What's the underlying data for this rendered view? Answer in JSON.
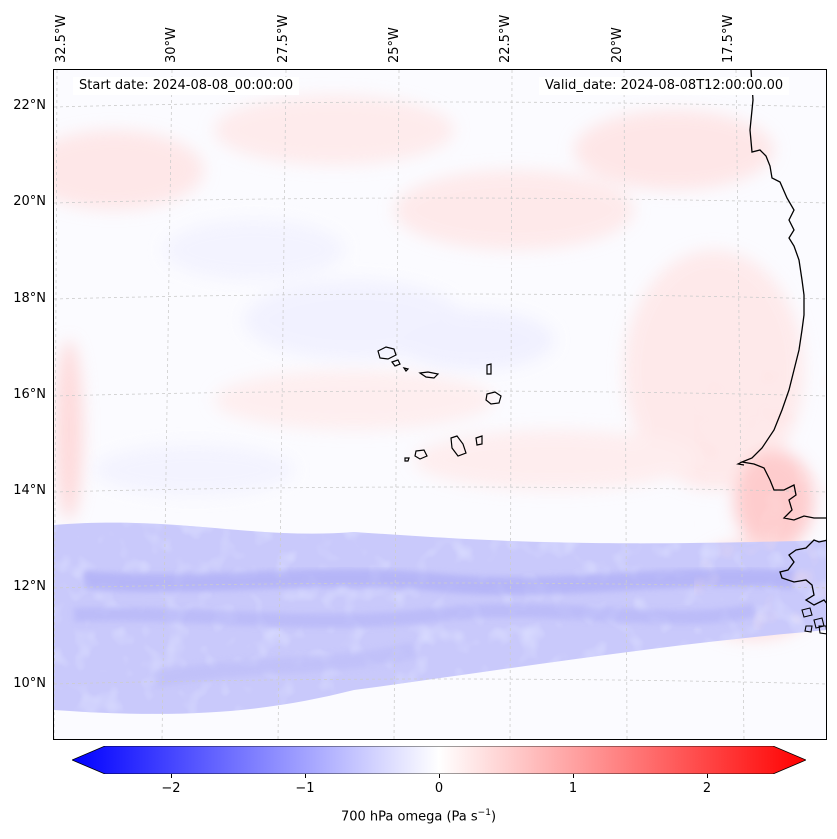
{
  "map": {
    "start_date": "Start date: 2024-08-08_00:00:00",
    "valid_date": "Valid_date: 2024-08-08T12:00:00.00",
    "lon_labels": [
      "32.5°W",
      "30°W",
      "27.5°W",
      "25°W",
      "22.5°W",
      "20°W",
      "17.5°W"
    ],
    "lat_labels": [
      "22°N",
      "20°N",
      "18°N",
      "16°N",
      "14°N",
      "12°N",
      "10°N"
    ],
    "coastline_color": "#000000",
    "gridline_color": "#cccccc"
  },
  "colorbar": {
    "label_prefix": "700 hPa omega (Pa s",
    "label_exp": "−1",
    "label_suffix": ")",
    "ticks": [
      "−2",
      "−1",
      "0",
      "1",
      "2"
    ],
    "min": -2.6,
    "max": 2.6,
    "colormap": "bwr",
    "low_color": "#0000ff",
    "mid_color": "#ffffff",
    "high_color": "#ff0000"
  }
}
